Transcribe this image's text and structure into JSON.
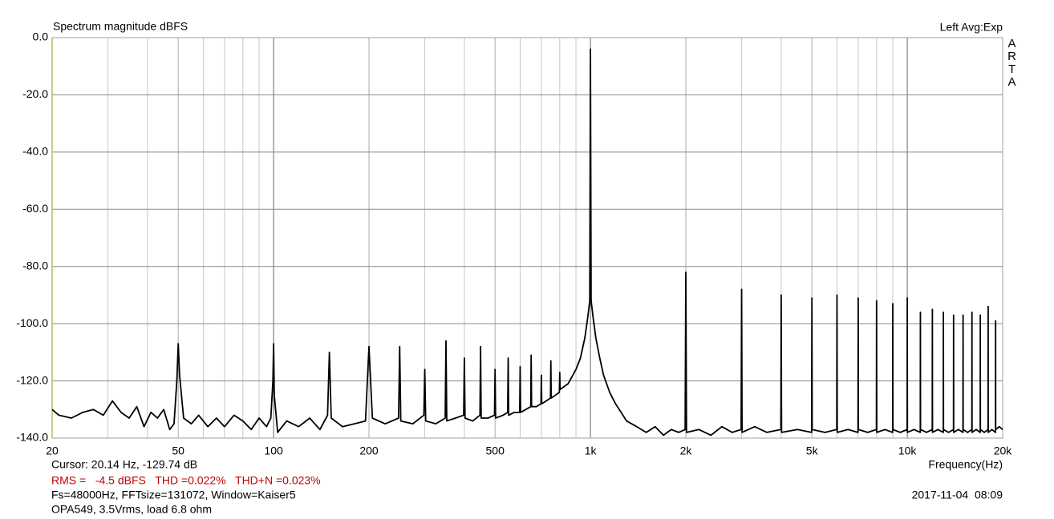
{
  "chart_data": {
    "type": "line",
    "title": "Spectrum magnitude dBFS",
    "channel_label": "Left  Avg:Exp",
    "watermark": "ARTA",
    "xlabel": "Frequency(Hz)",
    "cursor": "Cursor: 20.14 Hz, -129.74 dB",
    "measurements": "RMS =   -4.5 dBFS   THD =0.022%   THD+N =0.023%",
    "settings": "Fs=48000Hz, FFTsize=131072, Window=Kaiser5",
    "device": "OPA549, 3.5Vrms, load 6.8 ohm",
    "timestamp": "2017-11-04  08:09",
    "xscale": "log",
    "grid": true,
    "xlim": [
      20,
      20000
    ],
    "ylim": [
      -140,
      0
    ],
    "xticks": [
      20,
      50,
      100,
      200,
      500,
      {
        "value": 1000,
        "label": "1k"
      },
      {
        "value": 2000,
        "label": "2k"
      },
      {
        "value": 5000,
        "label": "5k"
      },
      {
        "value": 10000,
        "label": "10k"
      },
      {
        "value": 20000,
        "label": "20k"
      }
    ],
    "x_minor_grid": [
      30,
      40,
      60,
      70,
      80,
      90,
      300,
      400,
      600,
      700,
      800,
      900,
      3000,
      4000,
      6000,
      7000,
      8000,
      9000
    ],
    "yticks": [
      {
        "value": 0,
        "label": "0.0"
      },
      {
        "value": -20,
        "label": "-20.0"
      },
      {
        "value": -40,
        "label": "-40.0"
      },
      {
        "value": -60,
        "label": "-60.0"
      },
      {
        "value": -80,
        "label": "-80.0"
      },
      {
        "value": -100,
        "label": "-100.0"
      },
      {
        "value": -120,
        "label": "-120.0"
      },
      {
        "value": -140,
        "label": "-140.0"
      }
    ],
    "series": [
      {
        "color": "#000000",
        "x": [
          20,
          21,
          23,
          25,
          27,
          29,
          31,
          33,
          35,
          37,
          39,
          41,
          43,
          45,
          47,
          48.5,
          49.5,
          50,
          50.5,
          52,
          55,
          58,
          62,
          66,
          70,
          75,
          80,
          85,
          90,
          95,
          98,
          99.5,
          100,
          100.5,
          103,
          110,
          120,
          130,
          140,
          148,
          150,
          152,
          165,
          180,
          195,
          200,
          205,
          225,
          248,
          250,
          252,
          275,
          298,
          300,
          302,
          325,
          348,
          350,
          352,
          375,
          398,
          400,
          402,
          425,
          448,
          450,
          452,
          475,
          498,
          500,
          502,
          530,
          548,
          550,
          552,
          575,
          598,
          600,
          602,
          625,
          648,
          650,
          652,
          675,
          698,
          700,
          702,
          725,
          748,
          750,
          752,
          775,
          798,
          800,
          802,
          850,
          900,
          930,
          960,
          980,
          995,
          1000,
          1005,
          1020,
          1040,
          1070,
          1100,
          1150,
          1200,
          1250,
          1300,
          1400,
          1500,
          1600,
          1700,
          1800,
          1900,
          1990,
          2000,
          2010,
          2200,
          2400,
          2600,
          2800,
          2990,
          3000,
          3010,
          3300,
          3600,
          3990,
          4000,
          4010,
          4500,
          4990,
          5000,
          5010,
          5500,
          5990,
          6000,
          6010,
          6500,
          6990,
          7000,
          7010,
          7500,
          7990,
          8000,
          8010,
          8500,
          8990,
          9000,
          9010,
          9500,
          9990,
          10000,
          10010,
          10500,
          10990,
          11000,
          11010,
          11500,
          11990,
          12000,
          12010,
          12500,
          12990,
          13000,
          13010,
          13500,
          13990,
          14000,
          14010,
          14500,
          14990,
          15000,
          15010,
          15500,
          15990,
          16000,
          16010,
          16500,
          16990,
          17000,
          17010,
          17500,
          17990,
          18000,
          18010,
          18500,
          18990,
          19000,
          19010,
          19500,
          20000
        ],
        "values": [
          -130,
          -132,
          -133,
          -131,
          -130,
          -132,
          -127,
          -131,
          -133,
          -129,
          -136,
          -131,
          -133,
          -130,
          -137,
          -135,
          -120,
          -107,
          -118,
          -133,
          -135,
          -132,
          -136,
          -133,
          -136,
          -132,
          -134,
          -137,
          -133,
          -136,
          -133,
          -120,
          -107,
          -125,
          -138,
          -134,
          -136,
          -133,
          -137,
          -132,
          -110,
          -133,
          -136,
          -135,
          -134,
          -108,
          -133,
          -135,
          -133,
          -108,
          -134,
          -135,
          -132,
          -116,
          -134,
          -135,
          -133,
          -106,
          -134,
          -133,
          -132,
          -112,
          -133,
          -134,
          -132,
          -108,
          -133,
          -133,
          -132,
          -116,
          -133,
          -132,
          -131,
          -112,
          -132,
          -131,
          -131,
          -115,
          -131,
          -130,
          -129,
          -111,
          -129,
          -129,
          -128,
          -118,
          -128,
          -127,
          -126,
          -113,
          -126,
          -125,
          -124,
          -117,
          -123,
          -121,
          -116,
          -112,
          -105,
          -98,
          -92,
          -4,
          -92,
          -98,
          -105,
          -112,
          -118,
          -124,
          -128,
          -131,
          -134,
          -136,
          -138,
          -136,
          -139,
          -137,
          -138,
          -137,
          -82,
          -138,
          -137,
          -139,
          -136,
          -138,
          -137,
          -88,
          -138,
          -136,
          -138,
          -137,
          -90,
          -138,
          -137,
          -138,
          -91,
          -137,
          -138,
          -137,
          -90,
          -138,
          -137,
          -138,
          -91,
          -137,
          -138,
          -137,
          -92,
          -138,
          -137,
          -138,
          -93,
          -137,
          -138,
          -137,
          -91,
          -138,
          -137,
          -138,
          -96,
          -137,
          -138,
          -137,
          -95,
          -138,
          -137,
          -138,
          -96,
          -137,
          -138,
          -137,
          -97,
          -138,
          -137,
          -138,
          -97,
          -137,
          -138,
          -137,
          -96,
          -138,
          -137,
          -138,
          -97,
          -137,
          -138,
          -137,
          -94,
          -138,
          -137,
          -138,
          -99,
          -137,
          -136,
          -137
        ]
      }
    ]
  }
}
